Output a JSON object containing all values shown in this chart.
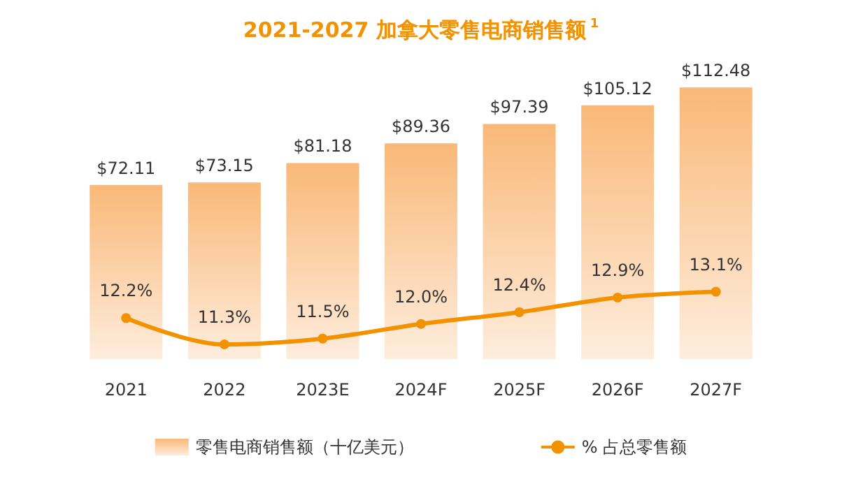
{
  "chart_data": {
    "type": "bar",
    "title": "2021-2027 加拿大零售电商销售额$^{1}$",
    "categories": [
      "2021",
      "2022",
      "2023E",
      "2024F",
      "2025F",
      "2026F",
      "2027F"
    ],
    "series": [
      {
        "name": "零售电商销售额（十亿美元）",
        "color": "#f9b878",
        "values": [
          72.11,
          73.15,
          81.18,
          89.36,
          97.39,
          105.12,
          112.48
        ],
        "value_labels": [
          "$72.11",
          "$73.15",
          "$81.18",
          "$89.36",
          "$97.39",
          "$105.12",
          "$112.48"
        ]
      },
      {
        "name": "% 占总零售额",
        "type": "line",
        "axis": "y2",
        "color": "#f39200",
        "marker": "circle",
        "values": [
          12.2,
          11.3,
          11.5,
          12.0,
          12.4,
          12.9,
          13.1
        ],
        "value_labels": [
          "12.2%",
          "11.3%",
          "11.5%",
          "12.0%",
          "12.4%",
          "12.9%",
          "13.1%"
        ]
      }
    ],
    "ylim": [
      0,
      114
    ],
    "y2lim": [
      10.8,
      20.2
    ],
    "tick_labels": "x",
    "legend": "bottom"
  }
}
